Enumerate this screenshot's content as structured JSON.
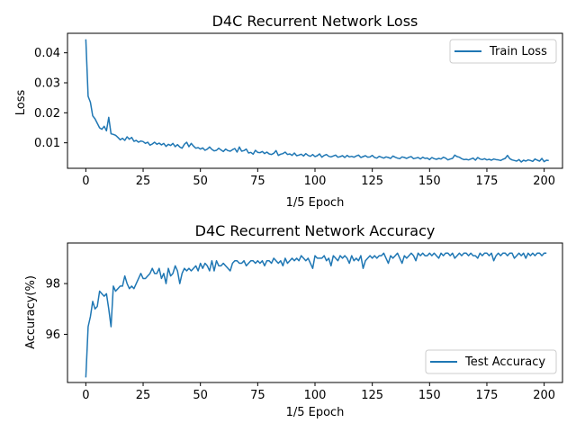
{
  "chart_data": [
    {
      "type": "line",
      "title": "D4C Recurrent Network Loss",
      "xlabel": "1/5 Epoch",
      "ylabel": "Loss",
      "xlim": [
        -8,
        208
      ],
      "ylim": [
        0.0015,
        0.0465
      ],
      "xticks": [
        0,
        25,
        50,
        75,
        100,
        125,
        150,
        175,
        200
      ],
      "yticks": [
        0.01,
        0.02,
        0.03,
        0.04
      ],
      "ytick_labels": [
        "0.01",
        "0.02",
        "0.03",
        "0.04"
      ],
      "legend_position": "top-right",
      "series": [
        {
          "name": "Train Loss",
          "color": "#1f77b4",
          "x_start": 0,
          "x_step": 1,
          "values": [
            0.0445,
            0.0255,
            0.0235,
            0.019,
            0.018,
            0.0165,
            0.015,
            0.0145,
            0.0155,
            0.014,
            0.0185,
            0.013,
            0.0128,
            0.0125,
            0.0118,
            0.011,
            0.0115,
            0.0108,
            0.012,
            0.0112,
            0.0118,
            0.0105,
            0.0108,
            0.0102,
            0.0106,
            0.0104,
            0.0098,
            0.0102,
            0.0092,
            0.0096,
            0.0102,
            0.0095,
            0.0099,
            0.0093,
            0.0098,
            0.0088,
            0.0095,
            0.0091,
            0.0098,
            0.0087,
            0.0094,
            0.0086,
            0.0082,
            0.0095,
            0.0102,
            0.0087,
            0.0098,
            0.0089,
            0.0082,
            0.0084,
            0.0079,
            0.0083,
            0.0075,
            0.0079,
            0.0086,
            0.0078,
            0.0073,
            0.0075,
            0.0082,
            0.0076,
            0.0071,
            0.0079,
            0.0074,
            0.0072,
            0.0077,
            0.0081,
            0.0069,
            0.0086,
            0.0072,
            0.0074,
            0.0079,
            0.0066,
            0.0068,
            0.0062,
            0.0075,
            0.0068,
            0.0067,
            0.0071,
            0.0064,
            0.0069,
            0.0063,
            0.0061,
            0.0065,
            0.0074,
            0.0058,
            0.0062,
            0.0064,
            0.0069,
            0.0061,
            0.0063,
            0.0058,
            0.0066,
            0.0057,
            0.0059,
            0.0062,
            0.0056,
            0.0064,
            0.0058,
            0.0055,
            0.0061,
            0.0054,
            0.0057,
            0.0063,
            0.0052,
            0.0058,
            0.0061,
            0.0055,
            0.0053,
            0.0056,
            0.0059,
            0.0052,
            0.0054,
            0.0057,
            0.0051,
            0.0058,
            0.0053,
            0.0055,
            0.0052,
            0.0056,
            0.0059,
            0.0051,
            0.0054,
            0.0057,
            0.0052,
            0.0053,
            0.0058,
            0.0051,
            0.0049,
            0.0055,
            0.0052,
            0.0049,
            0.0053,
            0.0051,
            0.0048,
            0.0056,
            0.0052,
            0.0049,
            0.0047,
            0.0053,
            0.0051,
            0.0048,
            0.0052,
            0.0054,
            0.0047,
            0.0049,
            0.0051,
            0.0046,
            0.0052,
            0.0048,
            0.0049,
            0.0044,
            0.0051,
            0.0047,
            0.0045,
            0.0048,
            0.0046,
            0.0052,
            0.0049,
            0.0043,
            0.0046,
            0.0048,
            0.0059,
            0.0054,
            0.0052,
            0.0047,
            0.0044,
            0.0045,
            0.0043,
            0.0046,
            0.0049,
            0.0042,
            0.0051,
            0.0046,
            0.0044,
            0.0047,
            0.0043,
            0.0045,
            0.0042,
            0.0046,
            0.0044,
            0.0043,
            0.0041,
            0.0045,
            0.0048,
            0.0058,
            0.0047,
            0.0043,
            0.0041,
            0.0039,
            0.0044,
            0.0036,
            0.0042,
            0.0039,
            0.0043,
            0.0041,
            0.0038,
            0.0046,
            0.0042,
            0.0039,
            0.0048,
            0.0037,
            0.0042,
            0.0041
          ]
        }
      ]
    },
    {
      "type": "line",
      "title": "D4C Recurrent Network Accuracy",
      "xlabel": "1/5 Epoch",
      "ylabel": "Accuracy(%)",
      "xlim": [
        -8,
        208
      ],
      "ylim": [
        94.1,
        99.6
      ],
      "xticks": [
        0,
        25,
        50,
        75,
        100,
        125,
        150,
        175,
        200
      ],
      "yticks": [
        96,
        98
      ],
      "ytick_labels": [
        "96",
        "98"
      ],
      "legend_position": "bottom-right",
      "series": [
        {
          "name": "Test Accuracy",
          "color": "#1f77b4",
          "x_start": 0,
          "x_step": 1,
          "values": [
            94.3,
            96.3,
            96.7,
            97.3,
            97.0,
            97.1,
            97.7,
            97.6,
            97.5,
            97.6,
            97.0,
            96.3,
            97.9,
            97.7,
            97.8,
            97.9,
            97.9,
            98.3,
            98.0,
            97.8,
            97.9,
            97.8,
            98.0,
            98.2,
            98.4,
            98.2,
            98.2,
            98.3,
            98.4,
            98.6,
            98.4,
            98.4,
            98.6,
            98.2,
            98.4,
            98.0,
            98.6,
            98.3,
            98.4,
            98.7,
            98.5,
            98.0,
            98.4,
            98.6,
            98.5,
            98.6,
            98.5,
            98.6,
            98.7,
            98.5,
            98.8,
            98.6,
            98.8,
            98.7,
            98.5,
            98.9,
            98.5,
            98.9,
            98.7,
            98.7,
            98.8,
            98.7,
            98.6,
            98.5,
            98.8,
            98.9,
            98.9,
            98.8,
            98.8,
            98.9,
            98.7,
            98.8,
            98.9,
            98.9,
            98.8,
            98.9,
            98.8,
            98.9,
            98.7,
            98.9,
            98.9,
            98.8,
            99.0,
            98.9,
            98.8,
            98.9,
            98.7,
            99.0,
            98.8,
            98.9,
            99.0,
            98.9,
            99.0,
            98.9,
            99.1,
            99.0,
            98.9,
            99.0,
            98.8,
            98.6,
            99.1,
            99.0,
            99.0,
            99.0,
            99.1,
            98.9,
            99.0,
            98.7,
            99.1,
            99.0,
            98.9,
            99.1,
            99.0,
            99.1,
            99.0,
            98.8,
            99.1,
            98.9,
            99.0,
            98.9,
            99.1,
            98.6,
            98.9,
            99.0,
            99.1,
            99.0,
            99.1,
            99.0,
            99.1,
            99.1,
            99.2,
            99.0,
            98.8,
            99.1,
            99.0,
            99.1,
            99.2,
            99.0,
            98.8,
            99.1,
            99.0,
            99.1,
            99.2,
            99.1,
            98.9,
            99.2,
            99.1,
            99.2,
            99.1,
            99.1,
            99.2,
            99.1,
            99.2,
            99.1,
            99.0,
            99.2,
            99.1,
            99.2,
            99.2,
            99.1,
            99.2,
            99.0,
            99.1,
            99.2,
            99.1,
            99.2,
            99.2,
            99.1,
            99.2,
            99.1,
            99.1,
            99.0,
            99.2,
            99.1,
            99.2,
            99.2,
            99.1,
            99.2,
            98.9,
            99.1,
            99.2,
            99.1,
            99.2,
            99.2,
            99.1,
            99.2,
            99.2,
            99.0,
            99.1,
            99.2,
            99.1,
            99.2,
            99.0,
            99.2,
            99.1,
            99.2,
            99.1,
            99.2,
            99.2,
            99.1,
            99.2,
            99.2
          ]
        }
      ]
    }
  ]
}
